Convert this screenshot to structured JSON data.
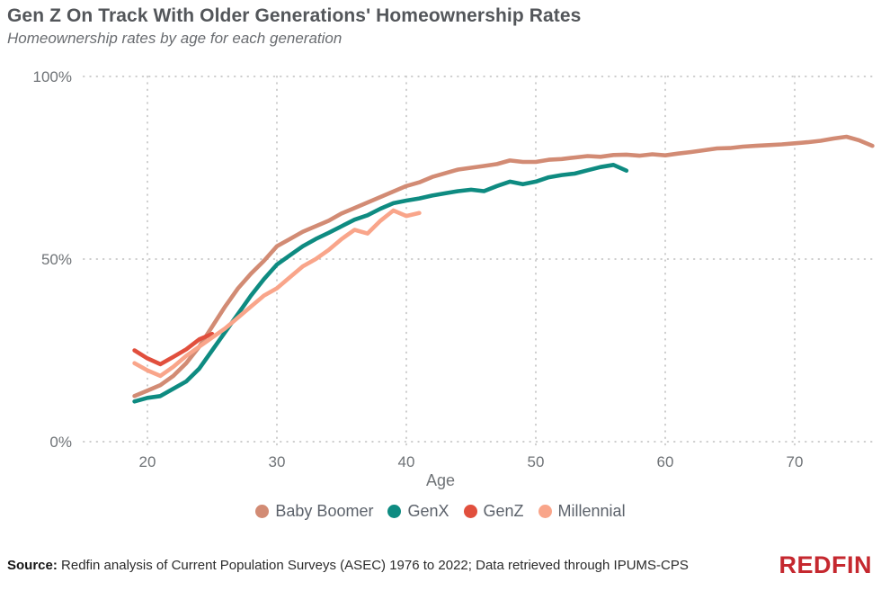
{
  "header": {
    "title": "Gen Z On Track With Older Generations' Homeownership Rates",
    "subtitle": "Homeownership rates by age for each generation"
  },
  "chart_data": {
    "type": "line",
    "title": "Gen Z On Track With Older Generations' Homeownership Rates",
    "subtitle": "Homeownership rates by age for each generation",
    "xlabel": "Age",
    "ylabel": "",
    "xlim": [
      17.5,
      76.5
    ],
    "ylim": [
      0,
      100
    ],
    "grid": "dotted",
    "legend_position": "bottom",
    "x_ticks": [
      20,
      30,
      40,
      50,
      60,
      70
    ],
    "x_tick_labels": [
      "20",
      "30",
      "40",
      "50",
      "60",
      "70"
    ],
    "y_ticks": [
      0,
      50,
      100
    ],
    "y_tick_labels": [
      "0%",
      "50%",
      "100%"
    ],
    "series": [
      {
        "name": "Baby Boomer",
        "color": "#d28b74",
        "points": [
          [
            19,
            12.5
          ],
          [
            20,
            14
          ],
          [
            21,
            15.5
          ],
          [
            22,
            18
          ],
          [
            23,
            21.5
          ],
          [
            24,
            26
          ],
          [
            25,
            31.5
          ],
          [
            26,
            37
          ],
          [
            27,
            42
          ],
          [
            28,
            46
          ],
          [
            29,
            49.5
          ],
          [
            30,
            53.5
          ],
          [
            31,
            55.5
          ],
          [
            32,
            57.5
          ],
          [
            33,
            59
          ],
          [
            34,
            60.5
          ],
          [
            35,
            62.5
          ],
          [
            36,
            64
          ],
          [
            37,
            65.5
          ],
          [
            38,
            67
          ],
          [
            39,
            68.5
          ],
          [
            40,
            70
          ],
          [
            41,
            71
          ],
          [
            42,
            72.5
          ],
          [
            43,
            73.5
          ],
          [
            44,
            74.5
          ],
          [
            45,
            75
          ],
          [
            46,
            75.5
          ],
          [
            47,
            76
          ],
          [
            48,
            77
          ],
          [
            49,
            76.6
          ],
          [
            50,
            76.6
          ],
          [
            51,
            77.2
          ],
          [
            52,
            77.4
          ],
          [
            53,
            77.8
          ],
          [
            54,
            78.2
          ],
          [
            55,
            78
          ],
          [
            56,
            78.5
          ],
          [
            57,
            78.6
          ],
          [
            58,
            78.3
          ],
          [
            59,
            78.7
          ],
          [
            60,
            78.4
          ],
          [
            61,
            78.9
          ],
          [
            62,
            79.3
          ],
          [
            63,
            79.8
          ],
          [
            64,
            80.3
          ],
          [
            65,
            80.4
          ],
          [
            66,
            80.8
          ],
          [
            67,
            81
          ],
          [
            68,
            81.2
          ],
          [
            69,
            81.4
          ],
          [
            70,
            81.7
          ],
          [
            71,
            82
          ],
          [
            72,
            82.4
          ],
          [
            73,
            83
          ],
          [
            74,
            83.5
          ],
          [
            75,
            82.5
          ],
          [
            76,
            81
          ]
        ]
      },
      {
        "name": "GenX",
        "color": "#0e8b81",
        "points": [
          [
            19,
            11
          ],
          [
            20,
            12
          ],
          [
            21,
            12.5
          ],
          [
            22,
            14.5
          ],
          [
            23,
            16.5
          ],
          [
            24,
            20
          ],
          [
            25,
            25
          ],
          [
            26,
            30
          ],
          [
            27,
            35
          ],
          [
            28,
            40
          ],
          [
            29,
            44.5
          ],
          [
            30,
            48.5
          ],
          [
            31,
            51
          ],
          [
            32,
            53.5
          ],
          [
            33,
            55.5
          ],
          [
            34,
            57.2
          ],
          [
            35,
            59
          ],
          [
            36,
            60.8
          ],
          [
            37,
            62
          ],
          [
            38,
            63.8
          ],
          [
            39,
            65.3
          ],
          [
            40,
            66
          ],
          [
            41,
            66.6
          ],
          [
            42,
            67.4
          ],
          [
            43,
            68
          ],
          [
            44,
            68.6
          ],
          [
            45,
            69
          ],
          [
            46,
            68.6
          ],
          [
            47,
            70
          ],
          [
            48,
            71.2
          ],
          [
            49,
            70.5
          ],
          [
            50,
            71.2
          ],
          [
            51,
            72.4
          ],
          [
            52,
            73
          ],
          [
            53,
            73.4
          ],
          [
            54,
            74.3
          ],
          [
            55,
            75.2
          ],
          [
            56,
            75.8
          ],
          [
            57,
            74.2
          ]
        ]
      },
      {
        "name": "GenZ",
        "color": "#e14f3d",
        "points": [
          [
            19,
            25
          ],
          [
            20,
            22.8
          ],
          [
            21,
            21.2
          ],
          [
            22,
            23.2
          ],
          [
            23,
            25.3
          ],
          [
            24,
            28
          ],
          [
            25,
            29.5
          ]
        ]
      },
      {
        "name": "Millennial",
        "color": "#f9a58a",
        "points": [
          [
            19,
            21.5
          ],
          [
            20,
            19.5
          ],
          [
            21,
            18
          ],
          [
            22,
            20.5
          ],
          [
            23,
            23.5
          ],
          [
            24,
            26
          ],
          [
            25,
            28.5
          ],
          [
            26,
            31
          ],
          [
            27,
            34
          ],
          [
            28,
            37
          ],
          [
            29,
            40
          ],
          [
            30,
            42
          ],
          [
            31,
            45
          ],
          [
            32,
            48
          ],
          [
            33,
            50
          ],
          [
            34,
            52.5
          ],
          [
            35,
            55.5
          ],
          [
            36,
            58
          ],
          [
            37,
            57
          ],
          [
            38,
            60.5
          ],
          [
            39,
            63.3
          ],
          [
            40,
            61.8
          ],
          [
            41,
            62.6
          ]
        ]
      }
    ]
  },
  "axis": {
    "x_label": "Age"
  },
  "footer": {
    "source_label": "Source:",
    "source_text": " Redfin analysis of Current Population Surveys (ASEC) 1976 to 2022; Data retrieved through IPUMS-CPS",
    "logo_text": "REDFIN"
  },
  "colors": {
    "baby_boomer": "#d28b74",
    "genx": "#0e8b81",
    "genz": "#e14f3d",
    "millennial": "#f9a58a",
    "grid": "#cccccc",
    "redfin_red": "#c5282f"
  }
}
